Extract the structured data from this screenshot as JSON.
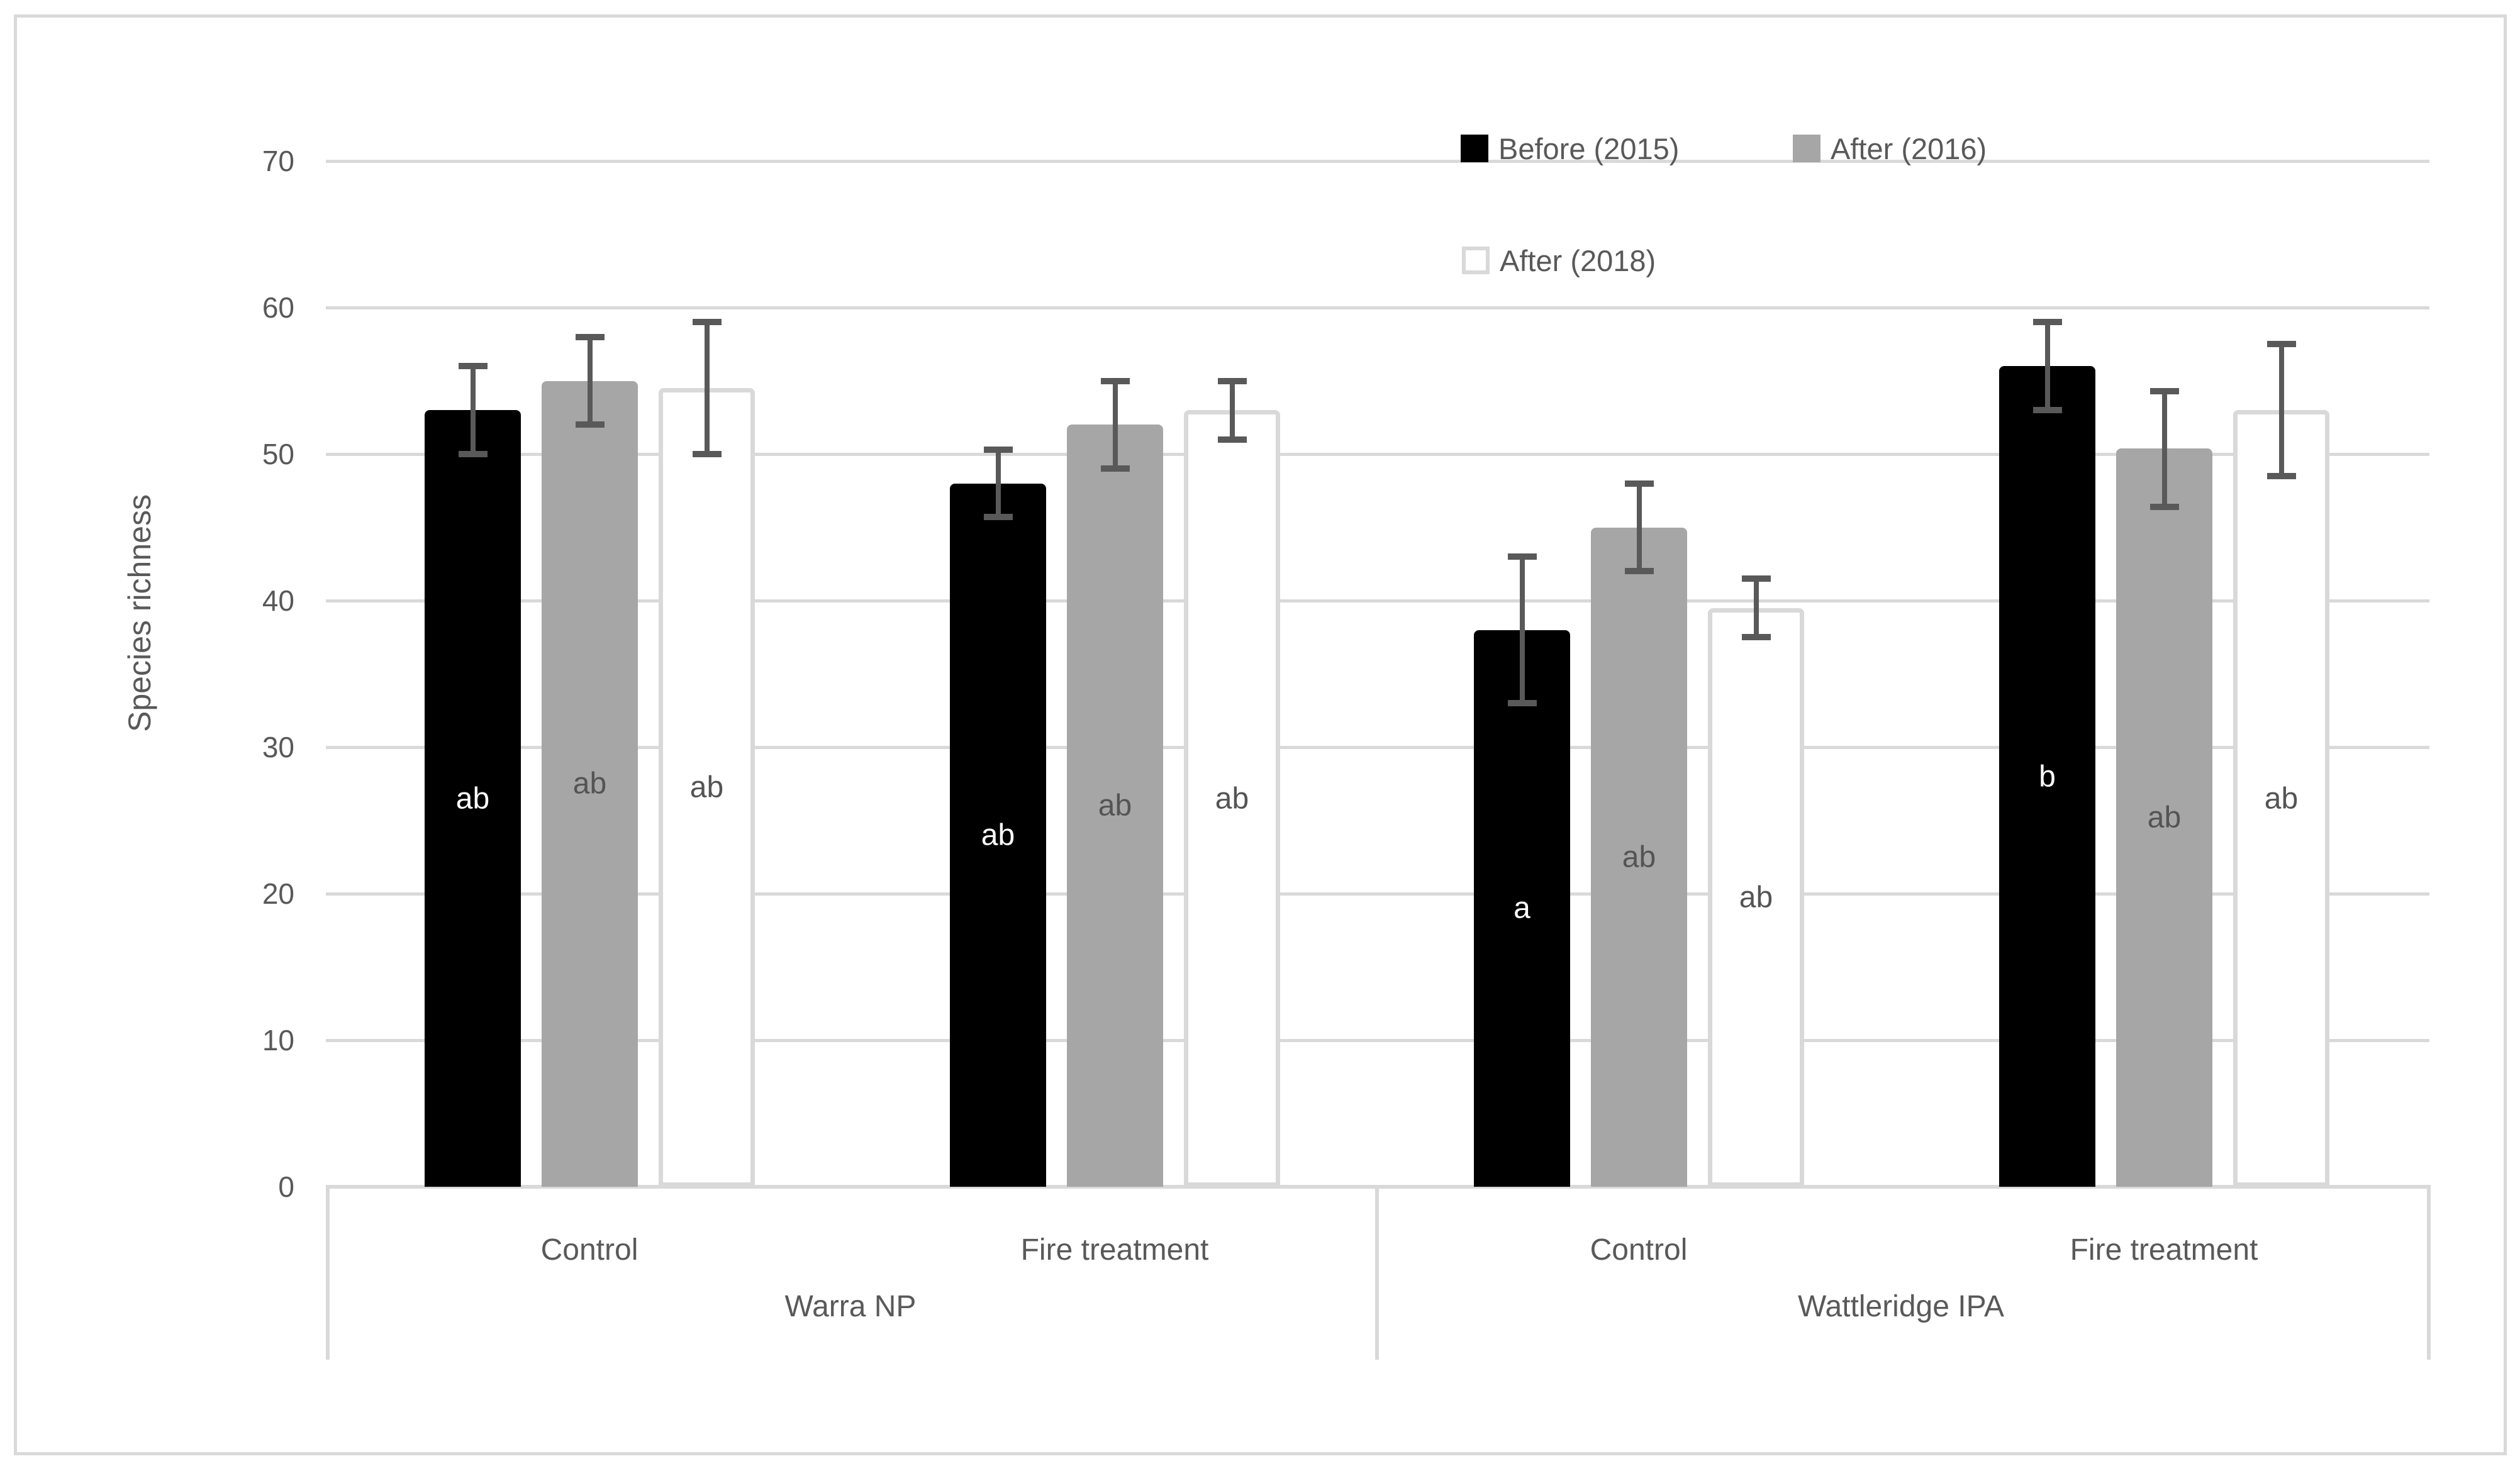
{
  "chart_data": {
    "type": "bar",
    "title": "",
    "ylabel": "Species richness",
    "ylim": [
      0,
      70
    ],
    "yticks": [
      0,
      10,
      20,
      30,
      40,
      50,
      60,
      70
    ],
    "grid": "horizontal gridlines on",
    "legend_position": "top-right, two rows",
    "sites": [
      {
        "label": "Warra NP",
        "treatments": [
          "Control",
          "Fire treatment"
        ]
      },
      {
        "label": "Wattleridge IPA",
        "treatments": [
          "Control",
          "Fire treatment"
        ]
      }
    ],
    "categories": [
      "Warra NP Control",
      "Warra NP Fire treatment",
      "Wattleridge IPA Control",
      "Wattleridge IPA Fire treatment"
    ],
    "series": [
      {
        "name": "Before (2015)",
        "fill": "#000000",
        "border": "#000000",
        "letter_color": "#ffffff",
        "values": [
          53,
          48,
          38,
          56
        ],
        "err_low": [
          50,
          45.7,
          33,
          53
        ],
        "err_high": [
          56,
          50.3,
          43,
          59
        ],
        "letters": [
          "ab",
          "ab",
          "a",
          "b"
        ]
      },
      {
        "name": "After (2016)",
        "fill": "#a6a6a6",
        "border": "#a6a6a6",
        "letter_color": "#545454",
        "values": [
          55,
          52,
          45,
          50.4
        ],
        "err_low": [
          52,
          49,
          42,
          46.4
        ],
        "err_high": [
          58,
          55,
          48,
          54.3
        ],
        "letters": [
          "ab",
          "ab",
          "ab",
          "ab"
        ]
      },
      {
        "name": "After (2018)",
        "fill": "#ffffff",
        "border": "#d9d9d9",
        "letter_color": "#545454",
        "values": [
          54.5,
          53,
          39.5,
          53
        ],
        "err_low": [
          50,
          51,
          37.5,
          48.5
        ],
        "err_high": [
          59,
          55,
          41.5,
          57.5
        ],
        "letters": [
          "ab",
          "ab",
          "ab",
          "ab"
        ]
      }
    ],
    "style": {
      "text_color": "#595959",
      "grid_color": "#d9d9d9",
      "axis_color": "#d9d9d9",
      "error_bar_color": "#595959",
      "frame_color": "#d9d9d9",
      "background": "#ffffff"
    }
  }
}
